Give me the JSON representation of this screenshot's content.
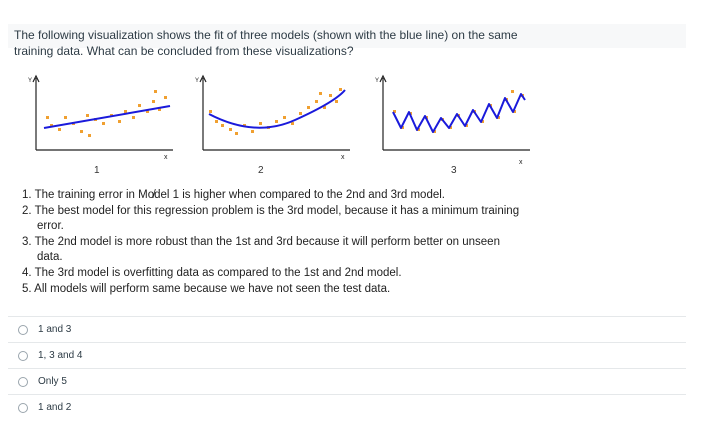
{
  "question": {
    "line1": "The following visualization shows the fit of three models (shown with the blue line) on the same",
    "line2": "training data. What can be concluded from these visualizations?"
  },
  "plots": {
    "labels": [
      "1",
      "2",
      "3"
    ],
    "axis_x": "x",
    "axis_y": "Y",
    "point_color": "#f0a030",
    "line_color": "#1a1adb"
  },
  "statements": [
    {
      "num": "1.",
      "text": "The training error in Mo̸del 1 is higher when compared to the 2nd and 3rd model."
    },
    {
      "num": "2.",
      "text": "The best model for this regression problem is the 3rd model, because it has a minimum training",
      "cont": "error."
    },
    {
      "num": "3.",
      "text": "The 2nd model is more robust than the 1st and 3rd because it will perform better on unseen",
      "cont": "data."
    },
    {
      "num": "4.",
      "text": "The 3rd model is overfitting data as compared to the 1st and 2nd model."
    },
    {
      "num": "5.",
      "text": "All models will perform same because we have not seen the test data."
    }
  ],
  "options": [
    {
      "label": "1 and 3"
    },
    {
      "label": "1, 3 and 4"
    },
    {
      "label": "Only 5"
    },
    {
      "label": "1 and 2"
    }
  ]
}
